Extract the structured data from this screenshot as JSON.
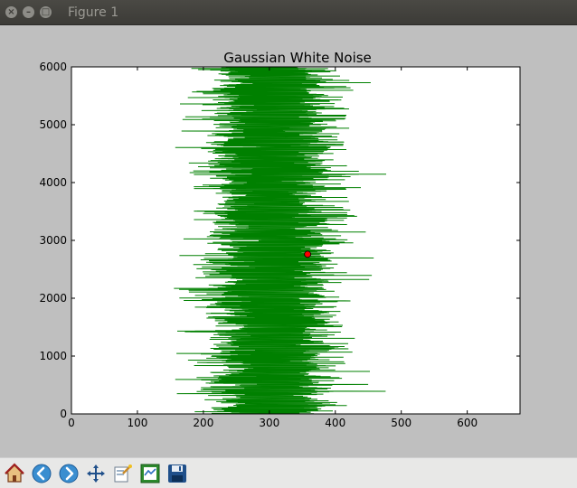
{
  "window": {
    "title": "Figure 1",
    "close_glyph": "×",
    "min_glyph": "–",
    "max_glyph": "□"
  },
  "toolbar": {
    "buttons": [
      {
        "name": "home-icon",
        "action": "home"
      },
      {
        "name": "back-icon",
        "action": "back"
      },
      {
        "name": "forward-icon",
        "action": "forward"
      },
      {
        "name": "pan-icon",
        "action": "pan"
      },
      {
        "name": "zoom-icon",
        "action": "zoom"
      },
      {
        "name": "subplots-icon",
        "action": "subplots"
      },
      {
        "name": "save-icon",
        "action": "save"
      }
    ]
  },
  "chart_data": {
    "type": "line",
    "title": "Gaussian White Noise",
    "xlabel": "",
    "ylabel": "",
    "xlim": [
      0,
      680
    ],
    "ylim": [
      0,
      6000
    ],
    "xticks": [
      0,
      100,
      200,
      300,
      400,
      500,
      600
    ],
    "yticks": [
      0,
      1000,
      2000,
      3000,
      4000,
      5000,
      6000
    ],
    "grid": false,
    "series": [
      {
        "color": "#008000",
        "style": "line",
        "description_points": 6000,
        "mean": 305,
        "std": 45,
        "min_observed": 155,
        "max_observed": 490
      }
    ],
    "marker": {
      "x": 358,
      "y": 2760,
      "color": "#ff0000"
    }
  },
  "colors": {
    "series": "#008000",
    "marker": "#ff0000",
    "plot_bg": "#ffffff",
    "figure_bg": "#bfbfbf"
  }
}
